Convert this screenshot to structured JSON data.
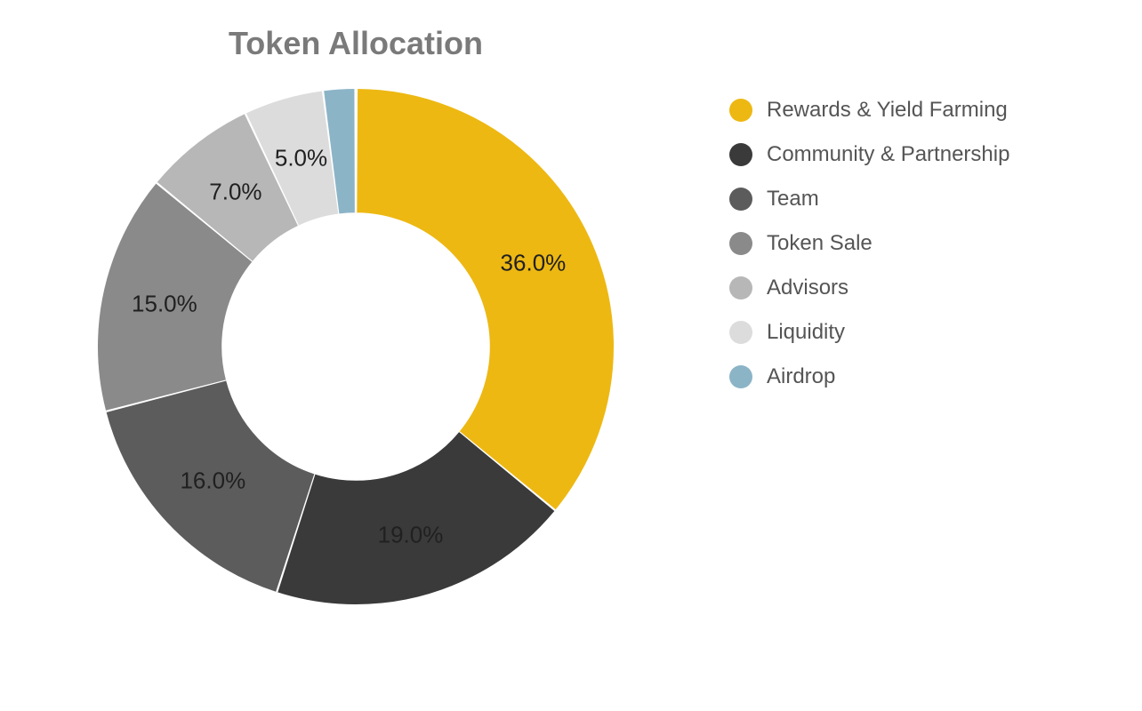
{
  "chart": {
    "type": "donut",
    "title": "Token Allocation",
    "title_fontsize": 36,
    "title_color": "#7a7a7a",
    "label_fontsize": 26,
    "label_color": "#202020",
    "legend_fontsize": 24,
    "legend_color": "#555555",
    "background_color": "#ffffff",
    "inner_radius_ratio": 0.52,
    "stroke_gap_color": "#ffffff",
    "stroke_gap_width": 2,
    "slices": [
      {
        "label": "Rewards & Yield Farming",
        "value": 36.0,
        "color": "#edb812",
        "show_pct": "36.0%"
      },
      {
        "label": "Community & Partnership",
        "value": 19.0,
        "color": "#3a3a3a",
        "show_pct": "19.0%"
      },
      {
        "label": "Team",
        "value": 16.0,
        "color": "#5c5c5c",
        "show_pct": "16.0%"
      },
      {
        "label": "Token Sale",
        "value": 15.0,
        "color": "#8a8a8a",
        "show_pct": "15.0%"
      },
      {
        "label": "Advisors",
        "value": 7.0,
        "color": "#b7b7b7",
        "show_pct": "7.0%"
      },
      {
        "label": "Liquidity",
        "value": 5.0,
        "color": "#dcdcdc",
        "show_pct": "5.0%"
      },
      {
        "label": "Airdrop",
        "value": 2.0,
        "color": "#8cb4c7",
        "show_pct": ""
      }
    ]
  }
}
